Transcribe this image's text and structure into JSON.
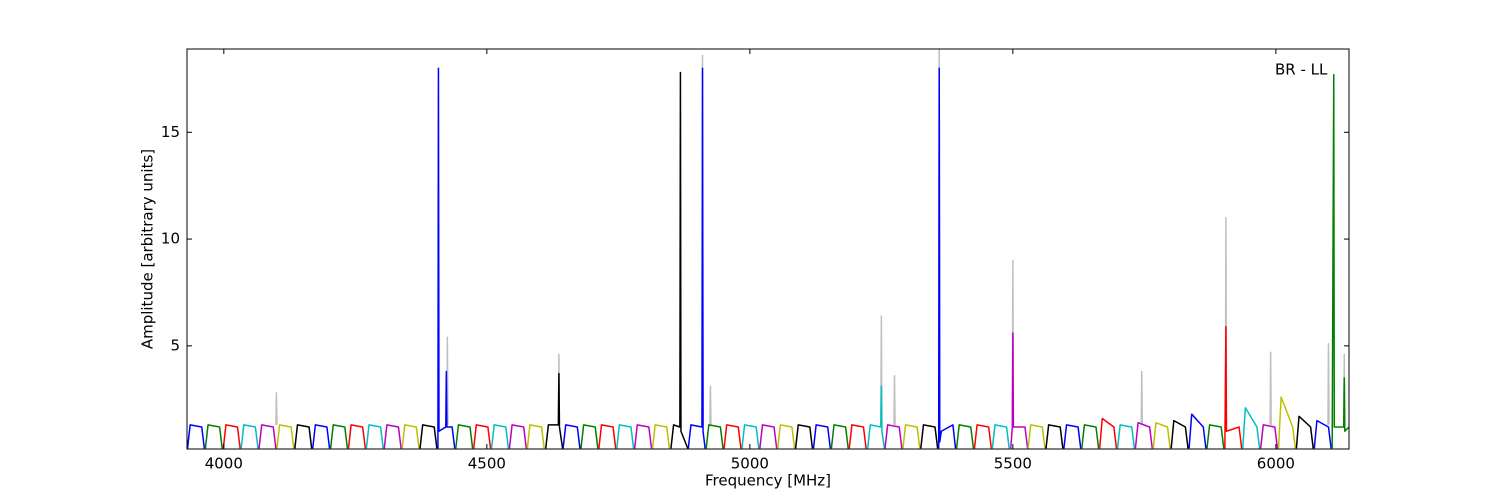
{
  "chart_data": {
    "type": "line",
    "annotation": "BR - LL",
    "x_label": "Frequency [MHz]",
    "y_label": "Amplitude [arbitrary units]",
    "xlim": [
      3930,
      6139
    ],
    "ylim": [
      0.17,
      18.9
    ],
    "xticks": [
      4000,
      4500,
      5000,
      5500,
      6000
    ],
    "yticks": [
      5,
      10,
      15
    ],
    "series": [
      {
        "color": "#bfbfbf",
        "x": [
          4099,
          4100,
          4101,
          null,
          4424,
          4425,
          4426,
          null,
          4636,
          4637,
          4638,
          null,
          4909,
          4910,
          4911,
          null,
          4924,
          4925,
          4926,
          null,
          5249,
          5250,
          5251,
          null,
          5274,
          5275,
          5276,
          null,
          5359,
          5360,
          5361,
          null,
          5499,
          5500,
          5501,
          null,
          5744,
          5745,
          5746,
          null,
          5904,
          5905,
          5906,
          null,
          5989,
          5990,
          5991,
          null,
          6099,
          6100,
          6101,
          null,
          6129,
          6130,
          6131
        ],
        "values": [
          1.3,
          2.8,
          1.3,
          null,
          1.3,
          5.4,
          1.3,
          null,
          1.3,
          4.6,
          1.3,
          null,
          1.3,
          18.6,
          1.3,
          null,
          1.3,
          3.1,
          1.3,
          null,
          1.3,
          6.4,
          1.3,
          null,
          1.3,
          3.6,
          1.3,
          null,
          1.3,
          18.9,
          1.3,
          null,
          1.3,
          9.0,
          1.3,
          null,
          1.3,
          3.8,
          1.3,
          null,
          1.3,
          11.0,
          1.3,
          null,
          1.3,
          4.7,
          1.3,
          null,
          1.3,
          5.1,
          1.3,
          null,
          1.3,
          4.6,
          1.3
        ]
      },
      {
        "color": "#0000ff",
        "x": [
          3931,
          3936,
          3958,
          3963,
          null,
          4169,
          4174,
          4196,
          4201,
          null,
          4407,
          4408,
          4409,
          4422,
          4423,
          4424,
          4434,
          4439,
          null,
          4645,
          4650,
          4672,
          4677,
          null,
          4883,
          4888,
          4909,
          4910,
          4911,
          4915,
          null,
          5121,
          5126,
          5148,
          5153,
          null,
          5359,
          5360,
          5361,
          5364,
          5386,
          5391,
          null,
          5597,
          5602,
          5624,
          5629,
          null,
          5835,
          5840,
          5862,
          5867,
          null,
          6073,
          6078,
          6100,
          6105
        ],
        "values": [
          0.2,
          1.3,
          1.2,
          0.2,
          null,
          0.2,
          1.3,
          1.2,
          0.2,
          null,
          0.2,
          18,
          1.0,
          1.2,
          3.8,
          1.2,
          1.2,
          0.2,
          null,
          0.2,
          1.3,
          1.2,
          0.2,
          null,
          0.2,
          1.3,
          1.2,
          18,
          1.0,
          0.2,
          null,
          0.2,
          1.3,
          1.2,
          0.2,
          null,
          0.2,
          18,
          0.5,
          1.0,
          1.3,
          0.2,
          null,
          0.2,
          1.3,
          1.2,
          0.2,
          null,
          0.2,
          1.8,
          1.2,
          0.2,
          null,
          0.2,
          1.5,
          1.2,
          0.2
        ]
      },
      {
        "color": "#008000",
        "x": [
          3965,
          3970,
          3992,
          3997,
          null,
          4203,
          4208,
          4230,
          4235,
          null,
          4441,
          4446,
          4468,
          4473,
          null,
          4679,
          4684,
          4706,
          4711,
          null,
          4917,
          4922,
          4944,
          4949,
          null,
          5155,
          5160,
          5182,
          5187,
          null,
          5393,
          5398,
          5420,
          5425,
          null,
          5631,
          5636,
          5658,
          5663,
          null,
          5869,
          5874,
          5896,
          5901,
          null,
          6107,
          6110,
          6111,
          6129,
          6130,
          6131,
          6139
        ],
        "values": [
          0.2,
          1.3,
          1.2,
          0.2,
          null,
          0.2,
          1.3,
          1.2,
          0.2,
          null,
          0.2,
          1.3,
          1.2,
          0.2,
          null,
          0.2,
          1.3,
          1.2,
          0.2,
          null,
          0.2,
          1.3,
          1.2,
          0.2,
          null,
          0.2,
          1.3,
          1.2,
          0.2,
          null,
          0.2,
          1.3,
          1.2,
          0.2,
          null,
          0.2,
          1.3,
          1.2,
          0.2,
          null,
          0.2,
          1.3,
          1.2,
          0.2,
          null,
          0.2,
          17.7,
          1.2,
          1.2,
          3.5,
          1.0,
          1.2
        ]
      },
      {
        "color": "#ff0000",
        "x": [
          3999,
          4004,
          4026,
          4031,
          null,
          4237,
          4242,
          4264,
          4269,
          null,
          4475,
          4480,
          4502,
          4507,
          null,
          4713,
          4718,
          4740,
          4745,
          null,
          4951,
          4956,
          4978,
          4983,
          null,
          5189,
          5194,
          5216,
          5221,
          null,
          5427,
          5432,
          5454,
          5459,
          null,
          5665,
          5670,
          5692,
          5697,
          null,
          5903,
          5905,
          5906,
          5930,
          5935
        ],
        "values": [
          0.2,
          1.3,
          1.2,
          0.2,
          null,
          0.2,
          1.3,
          1.2,
          0.2,
          null,
          0.2,
          1.3,
          1.2,
          0.2,
          null,
          0.2,
          1.3,
          1.2,
          0.2,
          null,
          0.2,
          1.3,
          1.2,
          0.2,
          null,
          0.2,
          1.3,
          1.2,
          0.2,
          null,
          0.2,
          1.3,
          1.2,
          0.2,
          null,
          0.2,
          1.6,
          1.2,
          0.2,
          null,
          0.2,
          5.9,
          1.0,
          1.2,
          0.2
        ]
      },
      {
        "color": "#00bfbf",
        "x": [
          4033,
          4038,
          4060,
          4065,
          null,
          4271,
          4276,
          4298,
          4303,
          null,
          4509,
          4514,
          4536,
          4541,
          null,
          4747,
          4752,
          4774,
          4779,
          null,
          4985,
          4990,
          5012,
          5017,
          null,
          5224,
          5229,
          5249,
          5250,
          5251,
          5256,
          null,
          5461,
          5466,
          5488,
          5493,
          null,
          5699,
          5704,
          5726,
          5731,
          null,
          5937,
          5942,
          5964,
          5969
        ],
        "values": [
          0.2,
          1.3,
          1.2,
          0.2,
          null,
          0.2,
          1.3,
          1.2,
          0.2,
          null,
          0.2,
          1.3,
          1.2,
          0.2,
          null,
          0.2,
          1.3,
          1.2,
          0.2,
          null,
          0.2,
          1.3,
          1.2,
          0.2,
          null,
          0.2,
          1.3,
          1.2,
          3.1,
          1.0,
          0.2,
          null,
          0.2,
          1.3,
          1.2,
          0.2,
          null,
          0.2,
          1.3,
          1.2,
          0.2,
          null,
          0.2,
          2.1,
          1.2,
          0.2
        ]
      },
      {
        "color": "#bf00bf",
        "x": [
          4067,
          4072,
          4094,
          4099,
          null,
          4305,
          4310,
          4332,
          4337,
          null,
          4543,
          4548,
          4570,
          4575,
          null,
          4781,
          4786,
          4808,
          4813,
          null,
          5019,
          5024,
          5046,
          5051,
          null,
          5257,
          5262,
          5284,
          5289,
          null,
          5496,
          5499,
          5500,
          5501,
          5523,
          5528,
          null,
          5733,
          5738,
          5760,
          5765,
          null,
          5971,
          5976,
          5998,
          6003
        ],
        "values": [
          0.2,
          1.3,
          1.2,
          0.2,
          null,
          0.2,
          1.3,
          1.2,
          0.2,
          null,
          0.2,
          1.3,
          1.2,
          0.2,
          null,
          0.2,
          1.3,
          1.2,
          0.2,
          null,
          0.2,
          1.3,
          1.2,
          0.2,
          null,
          0.2,
          1.3,
          1.2,
          0.2,
          null,
          0.2,
          1.2,
          5.6,
          1.2,
          1.2,
          0.2,
          null,
          0.2,
          1.4,
          1.2,
          0.2,
          null,
          0.2,
          1.3,
          1.2,
          0.2
        ]
      },
      {
        "color": "#bfbf00",
        "x": [
          4101,
          4106,
          4128,
          4133,
          null,
          4339,
          4344,
          4366,
          4371,
          null,
          4577,
          4582,
          4604,
          4609,
          null,
          4815,
          4820,
          4842,
          4847,
          null,
          5053,
          5058,
          5080,
          5085,
          null,
          5291,
          5296,
          5318,
          5323,
          null,
          5529,
          5534,
          5556,
          5561,
          null,
          5767,
          5772,
          5794,
          5799,
          null,
          6005,
          6010,
          6032,
          6037
        ],
        "values": [
          0.2,
          1.3,
          1.2,
          0.2,
          null,
          0.2,
          1.3,
          1.2,
          0.2,
          null,
          0.2,
          1.3,
          1.2,
          0.2,
          null,
          0.2,
          1.3,
          1.2,
          0.2,
          null,
          0.2,
          1.3,
          1.2,
          0.2,
          null,
          0.2,
          1.3,
          1.2,
          0.2,
          null,
          0.2,
          1.3,
          1.2,
          0.2,
          null,
          0.2,
          1.4,
          1.2,
          0.2,
          null,
          0.2,
          2.6,
          1.2,
          0.2
        ]
      },
      {
        "color": "#000000",
        "x": [
          4135,
          4140,
          4162,
          4167,
          null,
          4373,
          4378,
          4400,
          4405,
          null,
          4612,
          4617,
          4636,
          4637,
          4638,
          4644,
          null,
          4850,
          4855,
          4867,
          4868,
          4869,
          4882,
          null,
          5087,
          5092,
          5114,
          5119,
          null,
          5325,
          5330,
          5352,
          5357,
          null,
          5563,
          5568,
          5590,
          5595,
          null,
          5801,
          5806,
          5828,
          5833,
          null,
          6039,
          6044,
          6066,
          6071
        ],
        "values": [
          0.2,
          1.3,
          1.2,
          0.2,
          null,
          0.2,
          1.3,
          1.2,
          0.2,
          null,
          0.2,
          1.3,
          1.3,
          3.7,
          1.2,
          0.2,
          null,
          0.2,
          1.3,
          1.2,
          17.8,
          1.0,
          0.2,
          null,
          0.2,
          1.3,
          1.2,
          0.2,
          null,
          0.2,
          1.3,
          1.2,
          0.2,
          null,
          0.2,
          1.3,
          1.2,
          0.2,
          null,
          0.2,
          1.5,
          1.2,
          0.2,
          null,
          0.2,
          1.7,
          1.2,
          0.2
        ]
      }
    ]
  }
}
